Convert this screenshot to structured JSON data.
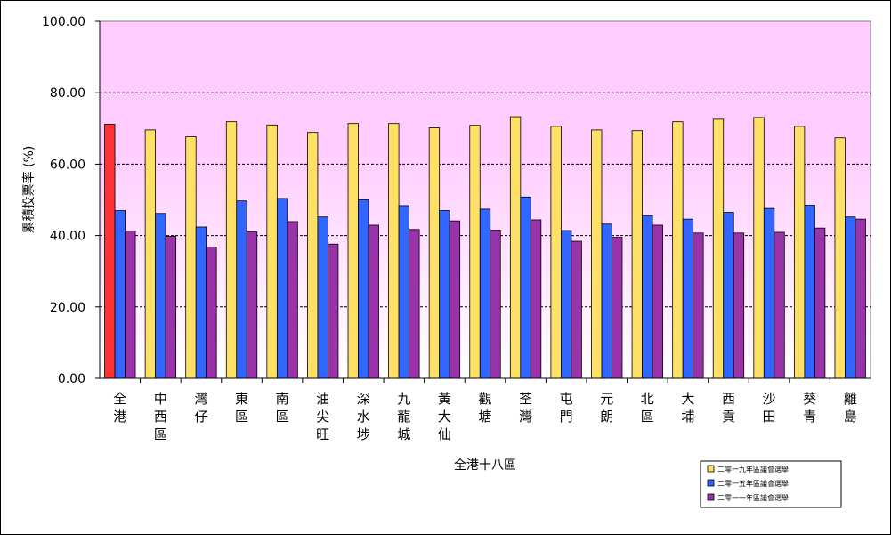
{
  "chart_data": {
    "type": "bar",
    "xlabel": "全港十八區",
    "ylabel": "累積投票率 (%)",
    "ylim": [
      0,
      100
    ],
    "yticks": [
      "0.00",
      "20.00",
      "40.00",
      "60.00",
      "80.00",
      "100.00"
    ],
    "grid": true,
    "legend_position": "bottom-right",
    "categories": [
      "全港",
      "中西區",
      "灣仔",
      "東區",
      "南區",
      "油尖旺",
      "深水埗",
      "九龍城",
      "黃大仙",
      "觀塘",
      "荃灣",
      "屯門",
      "元朗",
      "北區",
      "大埔",
      "西貢",
      "沙田",
      "葵青",
      "離島"
    ],
    "series": [
      {
        "name": "二零一九年區議會選舉",
        "color": "#FFE066",
        "highlight_first_color": "#FF3333",
        "values": [
          71.2,
          69.6,
          67.7,
          71.9,
          71.0,
          68.9,
          71.4,
          71.4,
          70.2,
          70.9,
          73.3,
          70.6,
          69.6,
          69.4,
          71.9,
          72.6,
          73.1,
          70.6,
          67.4
        ]
      },
      {
        "name": "二零一五年區議會選舉",
        "color": "#3366FF",
        "values": [
          47.0,
          46.2,
          42.4,
          49.7,
          50.4,
          45.2,
          50.0,
          48.4,
          47.0,
          47.4,
          50.8,
          41.4,
          43.2,
          45.6,
          44.6,
          46.5,
          47.6,
          48.5,
          45.2
        ]
      },
      {
        "name": "二零一一年區議會選舉",
        "color": "#9933AA",
        "values": [
          41.3,
          39.8,
          36.8,
          41.0,
          43.9,
          37.6,
          42.9,
          41.7,
          44.1,
          41.5,
          44.4,
          38.4,
          39.5,
          42.9,
          40.7,
          40.7,
          40.9,
          42.1,
          44.6
        ]
      }
    ]
  }
}
